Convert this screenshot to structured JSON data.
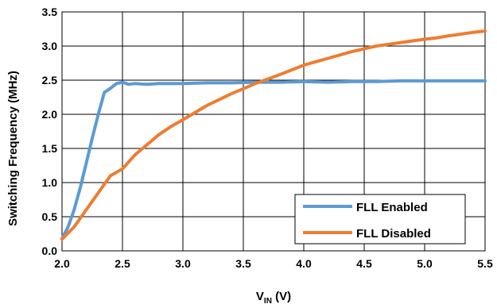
{
  "chart_data": {
    "type": "line",
    "xlabel": "V",
    "xlabel_sub": "IN",
    "xlabel_unit": " (V)",
    "ylabel": "Switching Frequency (MHz)",
    "xlim": [
      2.0,
      5.5
    ],
    "ylim": [
      0.0,
      3.5
    ],
    "x_ticks": [
      "2.0",
      "2.5",
      "3.0",
      "3.5",
      "4.0",
      "4.5",
      "5.0",
      "5.5"
    ],
    "y_ticks": [
      "0.0",
      "0.5",
      "1.0",
      "1.5",
      "2.0",
      "2.5",
      "3.0",
      "3.5"
    ],
    "grid": true,
    "legend_position": "bottom-right",
    "series": [
      {
        "name": "FLL Enabled",
        "color": "#5b9bd5",
        "x": [
          2.0,
          2.05,
          2.1,
          2.15,
          2.2,
          2.25,
          2.3,
          2.35,
          2.4,
          2.45,
          2.5,
          2.55,
          2.6,
          2.7,
          2.8,
          2.9,
          3.0,
          3.2,
          3.4,
          3.6,
          3.8,
          4.0,
          4.2,
          4.4,
          4.6,
          4.8,
          5.0,
          5.2,
          5.4,
          5.5
        ],
        "y": [
          0.18,
          0.35,
          0.6,
          0.92,
          1.28,
          1.65,
          2.0,
          2.32,
          2.38,
          2.45,
          2.47,
          2.44,
          2.45,
          2.44,
          2.45,
          2.45,
          2.45,
          2.46,
          2.46,
          2.47,
          2.47,
          2.48,
          2.47,
          2.48,
          2.48,
          2.49,
          2.49,
          2.49,
          2.49,
          2.49
        ]
      },
      {
        "name": "FLL Disabled",
        "color": "#ed7d31",
        "x": [
          2.0,
          2.1,
          2.2,
          2.3,
          2.4,
          2.5,
          2.6,
          2.7,
          2.8,
          2.9,
          3.0,
          3.2,
          3.4,
          3.6,
          3.8,
          4.0,
          4.2,
          4.4,
          4.6,
          4.8,
          5.0,
          5.1,
          5.2,
          5.4,
          5.5
        ],
        "y": [
          0.17,
          0.35,
          0.6,
          0.85,
          1.1,
          1.2,
          1.4,
          1.55,
          1.7,
          1.82,
          1.92,
          2.13,
          2.3,
          2.45,
          2.58,
          2.72,
          2.82,
          2.92,
          3.0,
          3.05,
          3.1,
          3.12,
          3.15,
          3.2,
          3.22
        ]
      }
    ]
  }
}
